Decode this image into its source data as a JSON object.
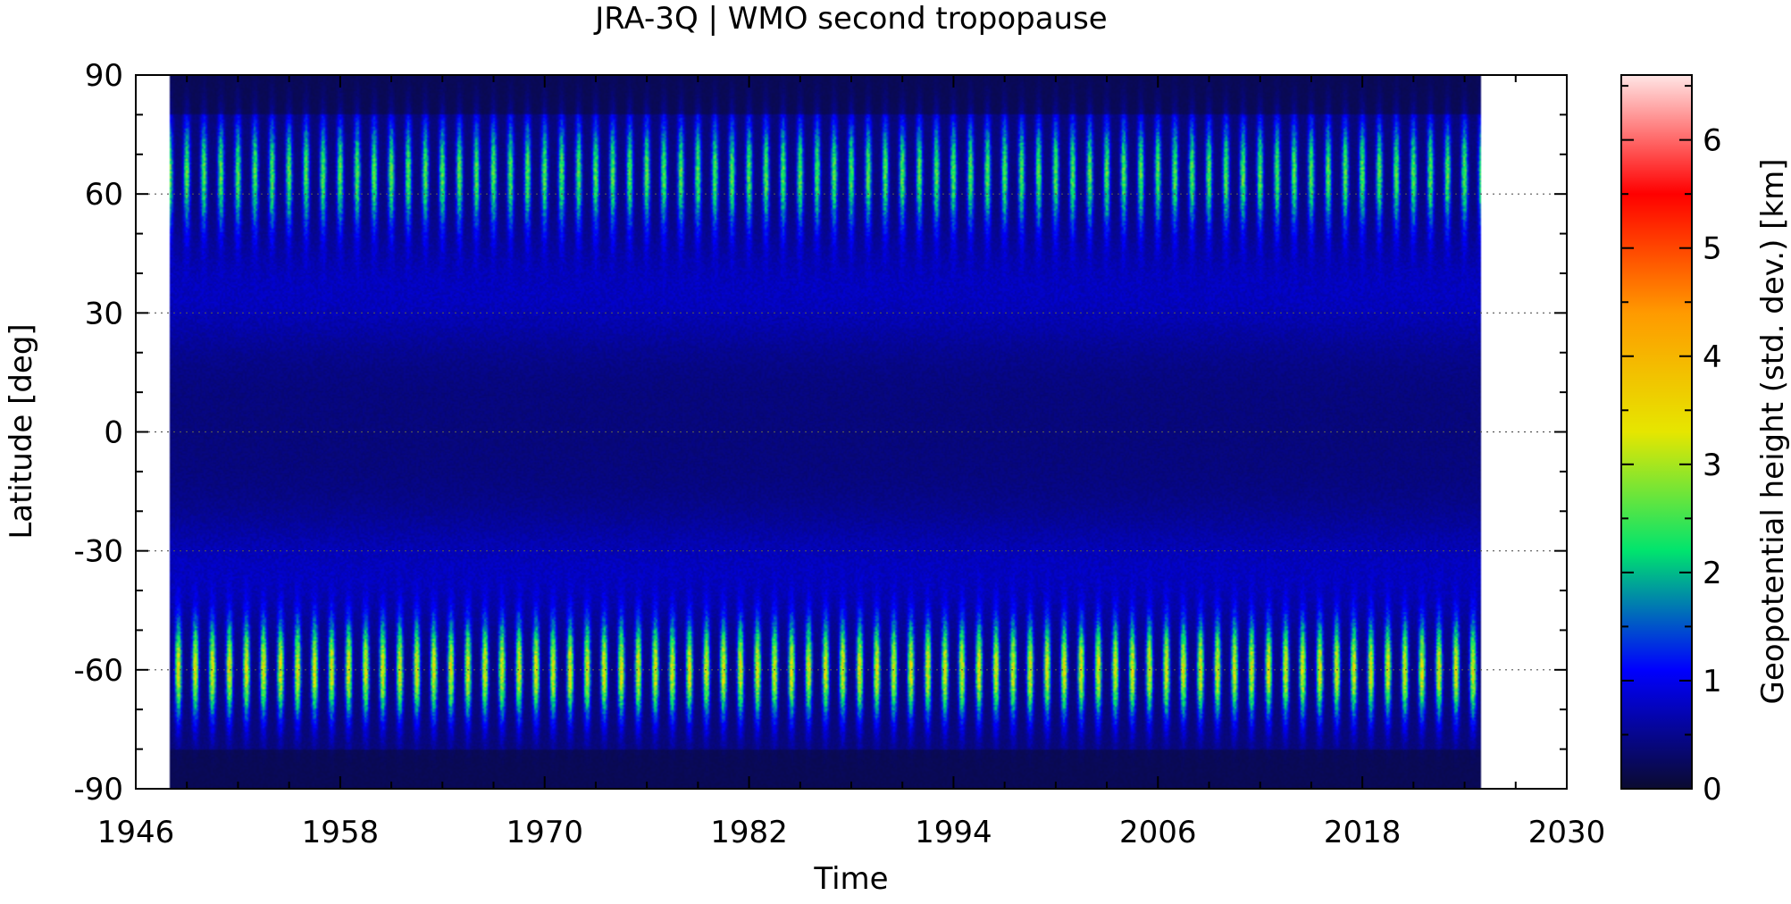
{
  "chart_data": {
    "type": "heatmap",
    "title": "JRA-3Q | WMO second tropopause",
    "xlabel": "Time",
    "ylabel": "Latitude [deg]",
    "colorbar_label": "Geopotential height (std. dev.) [km]",
    "xlim": [
      1946,
      2030
    ],
    "ylim": [
      -90,
      90
    ],
    "x_ticks": [
      1946,
      1958,
      1970,
      1982,
      1994,
      2006,
      2018,
      2030
    ],
    "y_ticks": [
      -90,
      -60,
      -30,
      0,
      30,
      60,
      90
    ],
    "data_time_range": [
      1948,
      2025
    ],
    "colorbar_range": [
      0,
      6.6
    ],
    "colorbar_ticks": [
      0,
      1,
      2,
      3,
      4,
      5,
      6
    ],
    "colorscale": [
      "#0b0b30",
      "#0000ff",
      "#00e46e",
      "#e6e600",
      "#ff9a00",
      "#ff0000",
      "#ffe5e5"
    ],
    "grid": "dotted at y ticks (visible right of data)",
    "structure": {
      "annual_cycle": true,
      "maxima_latitude_bands_deg": [
        {
          "lat": 65,
          "peak_std_km": 2.8
        },
        {
          "lat": -60,
          "peak_std_km": 3.8
        }
      ],
      "tropics_std_km": 0.4,
      "subtropics_std_km": 1.0,
      "polar_std_km": 0.4
    }
  }
}
